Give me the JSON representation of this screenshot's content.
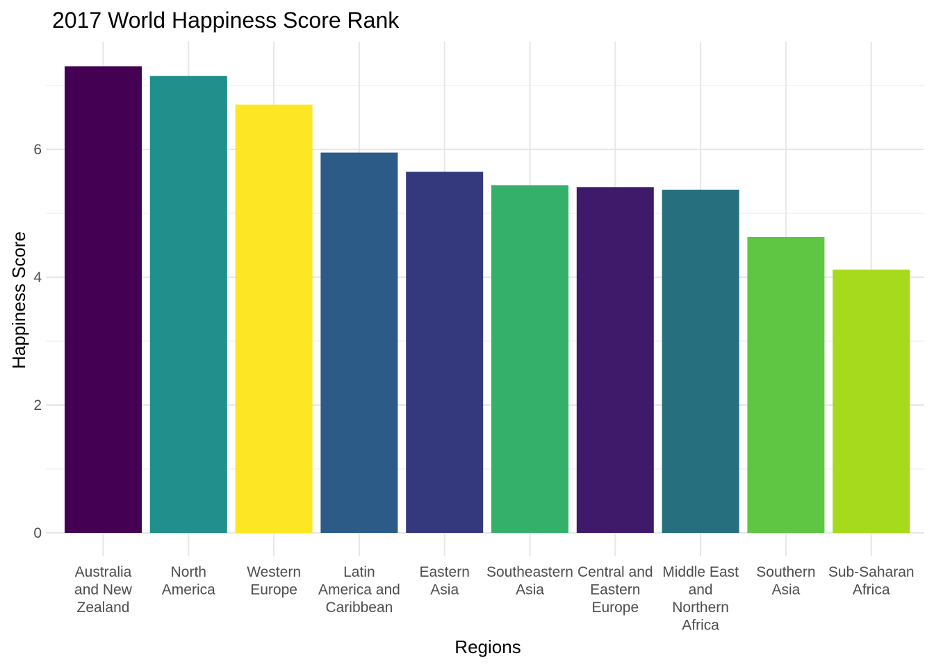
{
  "chart_data": {
    "type": "bar",
    "title": "2017 World Happiness Score Rank",
    "xlabel": "Regions",
    "ylabel": "Happiness Score",
    "ylim": [
      0,
      7.3
    ],
    "yticks": [
      0,
      2,
      4,
      6
    ],
    "grid": true,
    "legend": "none",
    "categories": [
      "Australia and New Zealand",
      "North America",
      "Western Europe",
      "Latin America and Caribbean",
      "Eastern Asia",
      "Southeastern Asia",
      "Central and Eastern Europe",
      "Middle East and Northern Africa",
      "Southern Asia",
      "Sub-Saharan Africa"
    ],
    "category_label_lines": [
      [
        "Australia",
        "and New",
        "Zealand"
      ],
      [
        "North",
        "America"
      ],
      [
        "Western",
        "Europe"
      ],
      [
        "Latin",
        "America and",
        "Caribbean"
      ],
      [
        "Eastern",
        "Asia"
      ],
      [
        "Southeastern",
        "Asia"
      ],
      [
        "Central and",
        "Eastern",
        "Europe"
      ],
      [
        "Middle East",
        "and",
        "Northern",
        "Africa"
      ],
      [
        "Southern",
        "Asia"
      ],
      [
        "Sub-Saharan",
        "Africa"
      ]
    ],
    "values": [
      7.3,
      7.15,
      6.7,
      5.95,
      5.65,
      5.44,
      5.41,
      5.37,
      4.63,
      4.12
    ],
    "colors": [
      "#440154",
      "#21908C",
      "#FDE725",
      "#2C5B87",
      "#33397C",
      "#35B06A",
      "#3F1A6B",
      "#266F7E",
      "#5FC644",
      "#A6DB1D"
    ]
  }
}
